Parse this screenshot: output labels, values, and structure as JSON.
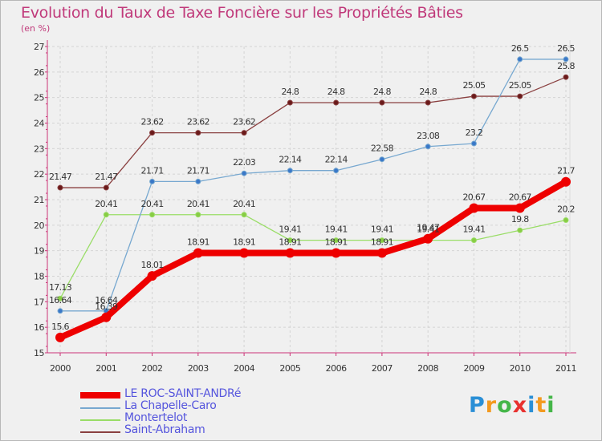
{
  "header": {
    "title": "Evolution du Taux de Taxe Foncière sur les Propriétés Bâties",
    "unit": "(en %)"
  },
  "chart_data": {
    "type": "line",
    "title": "Evolution du Taux de Taxe Foncière sur les Propriétés Bâties",
    "ylabel": "(en %)",
    "xlabel": "",
    "x": [
      "2000",
      "2001",
      "2002",
      "2003",
      "2004",
      "2005",
      "2006",
      "2007",
      "2008",
      "2009",
      "2010",
      "2011"
    ],
    "ylim": [
      15,
      27
    ],
    "yticks": [
      "15",
      "16",
      "17",
      "18",
      "19",
      "20",
      "21",
      "22",
      "23",
      "24",
      "25",
      "26",
      "27"
    ],
    "grid": true,
    "legend_position": "bottom-left",
    "series": [
      {
        "name": "LE ROC-SAINT-ANDRé",
        "color": "#ee0000",
        "values": [
          15.6,
          16.39,
          18.01,
          18.91,
          18.91,
          18.91,
          18.91,
          18.91,
          19.47,
          20.67,
          20.67,
          21.7
        ],
        "labels": [
          "15.6",
          "16.39",
          "18.01",
          "18.91",
          "18.91",
          "18.91",
          "18.91",
          "18.91",
          "19.47",
          "20.67",
          "20.67",
          "21.7"
        ]
      },
      {
        "name": "La Chapelle-Caro",
        "color": "#77a8d0",
        "marker": "#3a78c8",
        "values": [
          16.64,
          16.64,
          21.71,
          21.71,
          22.03,
          22.14,
          22.14,
          22.58,
          23.08,
          23.2,
          26.5,
          26.5
        ],
        "labels": [
          "16.64",
          "16.64",
          "21.71",
          "21.71",
          "22.03",
          "22.14",
          "22.14",
          "22.58",
          "23.08",
          "23.2",
          "26.5",
          "26.5"
        ]
      },
      {
        "name": "Montertelot",
        "color": "#99dd66",
        "marker": "#88cc44",
        "values": [
          17.13,
          20.41,
          20.41,
          20.41,
          20.41,
          19.41,
          19.41,
          19.41,
          19.41,
          19.41,
          19.8,
          20.2
        ],
        "labels": [
          "17.13",
          "20.41",
          "20.41",
          "20.41",
          "20.41",
          "19.41",
          "19.41",
          "19.41",
          "19.41",
          "19.41",
          "19.8",
          "20.2"
        ]
      },
      {
        "name": "Saint-Abraham",
        "color": "#8a4040",
        "marker": "#6a1a1a",
        "values": [
          21.47,
          21.47,
          23.62,
          23.62,
          23.62,
          24.8,
          24.8,
          24.8,
          24.8,
          25.05,
          25.05,
          25.8
        ],
        "labels": [
          "21.47",
          "21.47",
          "23.62",
          "23.62",
          "23.62",
          "24.8",
          "24.8",
          "24.8",
          "24.8",
          "25.05",
          "25.05",
          "25.8"
        ]
      }
    ]
  },
  "logo": {
    "letters": [
      "P",
      "r",
      "o",
      "x",
      "i",
      "t",
      "i"
    ],
    "colors": [
      "#2a8fd6",
      "#f39a1f",
      "#45b649",
      "#e8312f",
      "#2a8fd6",
      "#f39a1f",
      "#45b649"
    ]
  }
}
